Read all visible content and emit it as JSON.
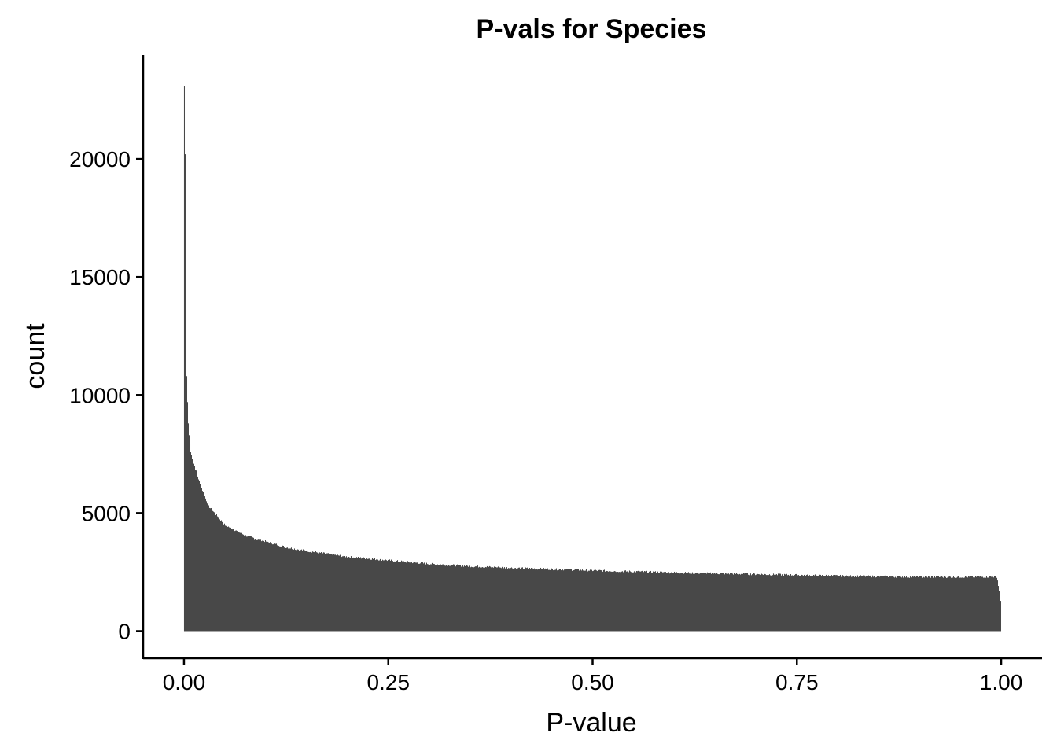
{
  "chart_data": {
    "type": "bar",
    "title": "P-vals for Species",
    "xlabel": "P-value",
    "ylabel": "count",
    "xlim": [
      -0.05,
      1.05
    ],
    "ylim": [
      -1150,
      24400
    ],
    "x_ticks": [
      {
        "value": 0.0,
        "label": "0.00"
      },
      {
        "value": 0.25,
        "label": "0.25"
      },
      {
        "value": 0.5,
        "label": "0.50"
      },
      {
        "value": 0.75,
        "label": "0.75"
      },
      {
        "value": 1.0,
        "label": "1.00"
      }
    ],
    "y_ticks": [
      {
        "value": 0,
        "label": "0"
      },
      {
        "value": 5000,
        "label": "5000"
      },
      {
        "value": 10000,
        "label": "10000"
      },
      {
        "value": 15000,
        "label": "15000"
      },
      {
        "value": 20000,
        "label": "20000"
      }
    ],
    "bar_color": "#484848",
    "grid": false,
    "legend": "none",
    "histogram_domain": [
      0,
      1
    ],
    "first_bin_values": [
      23100,
      20200,
      13600,
      10800,
      9700,
      8800,
      8300,
      7900
    ],
    "curve_points": [
      {
        "x": 0.008,
        "y": 7600
      },
      {
        "x": 0.012,
        "y": 7100
      },
      {
        "x": 0.02,
        "y": 6200
      },
      {
        "x": 0.03,
        "y": 5300
      },
      {
        "x": 0.05,
        "y": 4500
      },
      {
        "x": 0.075,
        "y": 4050
      },
      {
        "x": 0.1,
        "y": 3800
      },
      {
        "x": 0.125,
        "y": 3550
      },
      {
        "x": 0.15,
        "y": 3400
      },
      {
        "x": 0.2,
        "y": 3150
      },
      {
        "x": 0.25,
        "y": 3000
      },
      {
        "x": 0.3,
        "y": 2850
      },
      {
        "x": 0.35,
        "y": 2750
      },
      {
        "x": 0.4,
        "y": 2680
      },
      {
        "x": 0.5,
        "y": 2570
      },
      {
        "x": 0.6,
        "y": 2480
      },
      {
        "x": 0.7,
        "y": 2410
      },
      {
        "x": 0.8,
        "y": 2340
      },
      {
        "x": 0.9,
        "y": 2290
      },
      {
        "x": 0.995,
        "y": 2300
      },
      {
        "x": 1.0,
        "y": 1150
      }
    ]
  }
}
